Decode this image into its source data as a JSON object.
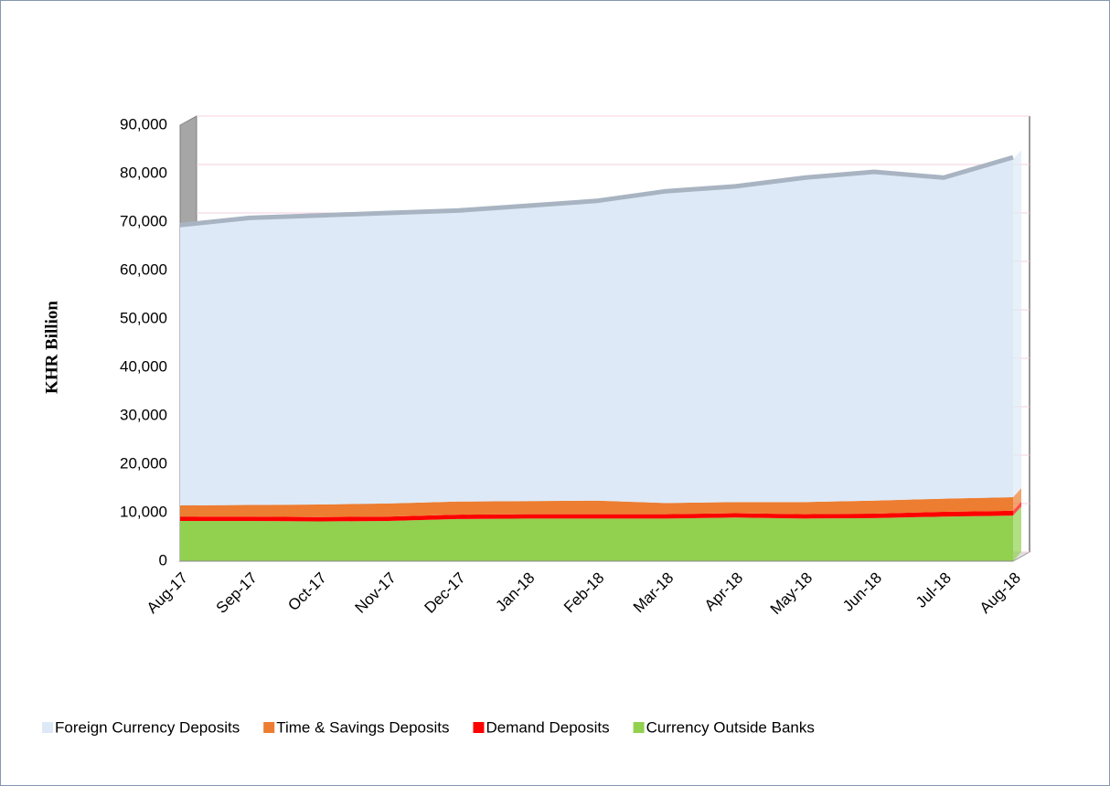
{
  "chart_data": {
    "type": "stacked_area",
    "y_label": "KHR Billion",
    "categories": [
      "Aug-17",
      "Sep-17",
      "Oct-17",
      "Nov-17",
      "Dec-17",
      "Jan-18",
      "Feb-18",
      "Mar-18",
      "Apr-18",
      "May-18",
      "Jun-18",
      "Jul-18",
      "Aug-18"
    ],
    "series": [
      {
        "name": "Foreign Currency Deposits",
        "color": "#dde9f7",
        "values": [
          57500,
          58900,
          59300,
          59600,
          59700,
          60600,
          61500,
          64000,
          64800,
          66600,
          67500,
          65900,
          69800
        ]
      },
      {
        "name": "Time & Savings Deposits",
        "color": "#ed7d31",
        "values": [
          2300,
          2400,
          2600,
          2700,
          2700,
          2700,
          2800,
          2300,
          2300,
          2500,
          2700,
          2700,
          2800
        ]
      },
      {
        "name": "Demand Deposits",
        "color": "#ff0000",
        "values": [
          900,
          900,
          900,
          900,
          900,
          900,
          900,
          900,
          900,
          900,
          900,
          1000,
          1000
        ]
      },
      {
        "name": "Currency Outside Banks",
        "color": "#92d050",
        "values": [
          8300,
          8300,
          8200,
          8300,
          8700,
          8800,
          8800,
          8800,
          9000,
          8800,
          8900,
          9200,
          9400
        ]
      }
    ],
    "ylim": [
      0,
      90000
    ],
    "yticks": [
      0,
      {
        "value": 10000,
        "label": "10,000"
      },
      {
        "value": 20000,
        "label": "20,000"
      },
      {
        "value": 30000,
        "label": "30,000"
      },
      {
        "value": 40000,
        "label": "40,000"
      },
      {
        "value": 50000,
        "label": "50,000"
      },
      {
        "value": 60000,
        "label": "60,000"
      },
      {
        "value": 70000,
        "label": "70,000"
      },
      {
        "value": 80000,
        "label": "80,000"
      },
      {
        "value": 90000,
        "label": "90,000"
      }
    ],
    "grid": true
  }
}
